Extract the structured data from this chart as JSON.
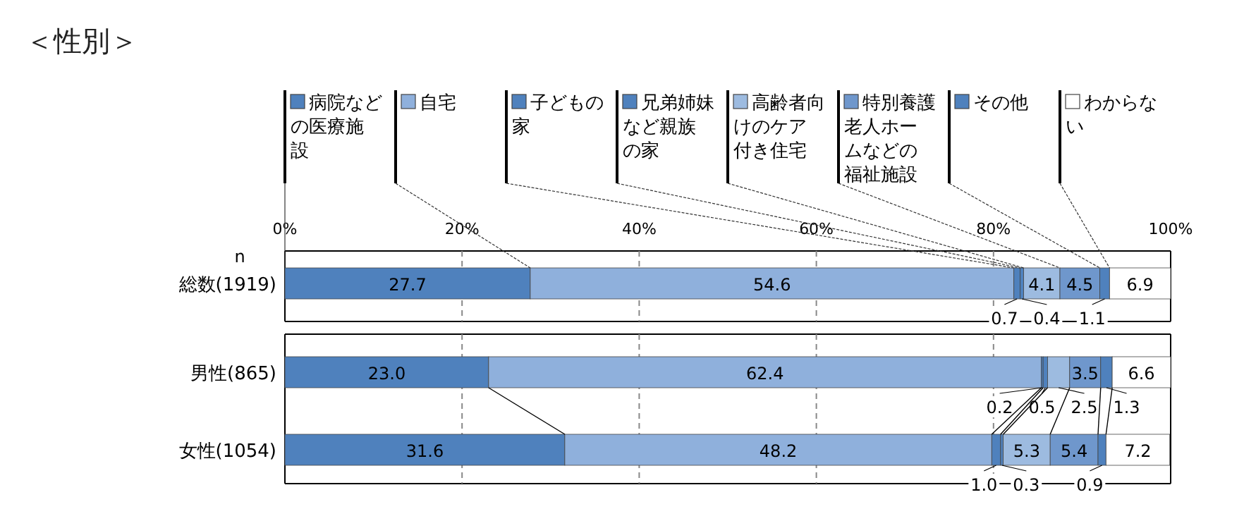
{
  "chart_data": {
    "type": "bar",
    "title": "＜性別＞",
    "orientation": "horizontal",
    "stacked": true,
    "legend": "top",
    "grid": "x",
    "ylabel": "n",
    "categories": [
      "総数(1919)",
      "男性(865)",
      "女性(1054)"
    ],
    "xlim": [
      0,
      100
    ],
    "xticks": [
      {
        "value": 0,
        "label": "0%"
      },
      {
        "value": 20,
        "label": "20%"
      },
      {
        "value": 40,
        "label": "40%"
      },
      {
        "value": 60,
        "label": "60%"
      },
      {
        "value": 80,
        "label": "80%"
      },
      {
        "value": 100,
        "label": "100%"
      }
    ],
    "series": [
      {
        "name": "病院などの医療施設",
        "color": "#4f81bd",
        "values": [
          27.7,
          23.0,
          31.6
        ],
        "value_labels": [
          "27.7",
          "23.0",
          "31.6"
        ]
      },
      {
        "name": "自宅",
        "color": "#8fb0dc",
        "values": [
          54.6,
          62.4,
          48.2
        ],
        "value_labels": [
          "54.6",
          "62.4",
          "48.2"
        ]
      },
      {
        "name": "子どもの家",
        "color": "#4f81bd",
        "values": [
          0.7,
          0.2,
          1.0
        ],
        "value_labels": [
          "0.7",
          "0.2",
          "1.0"
        ]
      },
      {
        "name": "兄弟姉妹など親族の家",
        "color": "#4f81bd",
        "values": [
          0.4,
          0.5,
          0.3
        ],
        "value_labels": [
          "0.4",
          "0.5",
          "0.3"
        ]
      },
      {
        "name": "高齢者向けのケア付き住宅",
        "color": "#9dbbe0",
        "values": [
          4.1,
          2.5,
          5.3
        ],
        "value_labels": [
          "4.1",
          "2.5",
          "5.3"
        ]
      },
      {
        "name": "特別養護老人ホームなどの福祉施設",
        "color": "#6f97cc",
        "values": [
          4.5,
          3.5,
          5.4
        ],
        "value_labels": [
          "4.5",
          "3.5",
          "5.4"
        ]
      },
      {
        "name": "その他",
        "color": "#4f81bd",
        "values": [
          1.1,
          1.3,
          0.9
        ],
        "value_labels": [
          "1.1",
          "1.3",
          "0.9"
        ]
      },
      {
        "name": "わからない",
        "color": "#ffffff",
        "values": [
          6.9,
          6.6,
          7.2
        ],
        "value_labels": [
          "6.9",
          "6.6",
          "7.2"
        ]
      }
    ]
  }
}
